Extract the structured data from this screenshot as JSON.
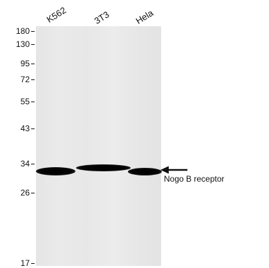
{
  "lanes": [
    {
      "label": "K562"
    },
    {
      "label": "3T3"
    },
    {
      "label": "Hela"
    }
  ],
  "markers": [
    {
      "label": "180"
    },
    {
      "label": "130"
    },
    {
      "label": "95"
    },
    {
      "label": "72"
    },
    {
      "label": "55"
    },
    {
      "label": "43"
    },
    {
      "label": "34"
    },
    {
      "label": "26"
    },
    {
      "label": "17"
    }
  ],
  "annotation": {
    "label": "Nogo B receptor",
    "icon": "arrow-left-icon"
  },
  "colors": {
    "membrane": "#e6e6e6",
    "band": "#050505",
    "text": "#111111"
  }
}
